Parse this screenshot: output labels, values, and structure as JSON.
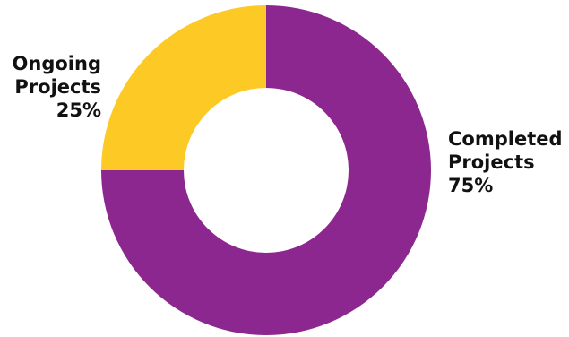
{
  "chart_data": {
    "type": "pie",
    "donut": true,
    "start_angle": "top, clockwise",
    "slices": [
      {
        "name": "Completed Projects",
        "value": 75,
        "color": "#8B278E",
        "label_lines": [
          "Completed",
          "Projects",
          "75%"
        ]
      },
      {
        "name": "Ongoing Projects",
        "value": 25,
        "color": "#FCC925",
        "label_lines": [
          "Ongoing",
          "Projects",
          "25%"
        ]
      }
    ]
  }
}
